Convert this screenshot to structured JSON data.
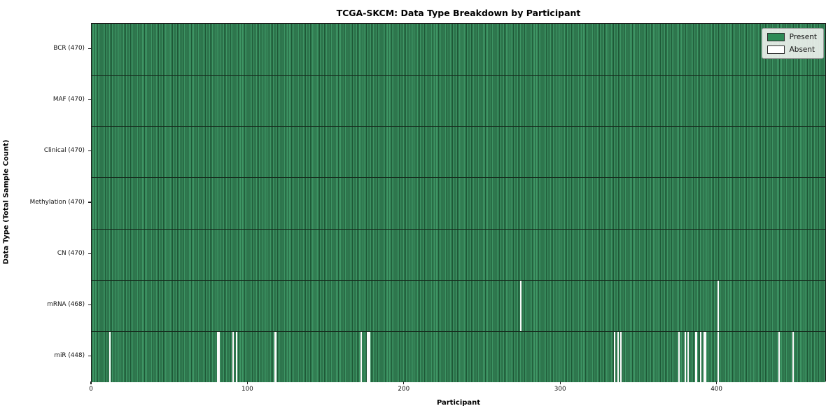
{
  "chart_data": {
    "type": "heatmap",
    "title": "TCGA-SKCM: Data Type Breakdown by Participant",
    "xlabel": "Participant",
    "ylabel": "Data Type (Total Sample Count)",
    "n_participants": 470,
    "x_ticks": [
      0,
      100,
      200,
      300,
      400
    ],
    "legend": [
      {
        "label": "Present",
        "color": "#2e8b57"
      },
      {
        "label": "Absent",
        "color": "#ffffff"
      }
    ],
    "legend_position": "upper right",
    "grid": false,
    "rows": [
      {
        "label": "BCR (470)",
        "data_type": "BCR",
        "present_count": 470,
        "absent_participants": []
      },
      {
        "label": "MAF (470)",
        "data_type": "MAF",
        "present_count": 470,
        "absent_participants": []
      },
      {
        "label": "Clinical (470)",
        "data_type": "Clinical",
        "present_count": 470,
        "absent_participants": []
      },
      {
        "label": "Methylation (470)",
        "data_type": "Methylation",
        "present_count": 470,
        "absent_participants": []
      },
      {
        "label": "CN (470)",
        "data_type": "CN",
        "present_count": 470,
        "absent_participants": []
      },
      {
        "label": "mRNA (468)",
        "data_type": "mRNA",
        "present_count": 468,
        "absent_participants": [
          274,
          400
        ]
      },
      {
        "label": "miR (448)",
        "data_type": "miR",
        "present_count": 448,
        "absent_participants": [
          11,
          80,
          81,
          90,
          92,
          117,
          172,
          176,
          177,
          334,
          336,
          338,
          375,
          379,
          381,
          386,
          389,
          391,
          392,
          400,
          439,
          448
        ]
      }
    ],
    "colors": {
      "present_fill": "#3f9766",
      "cell_edge": "#1c5534",
      "absent": "#fbfbfb",
      "row_separator": "#152a1c",
      "legend_present_swatch": "#2e8b57",
      "legend_absent_swatch": "#ffffff"
    }
  }
}
